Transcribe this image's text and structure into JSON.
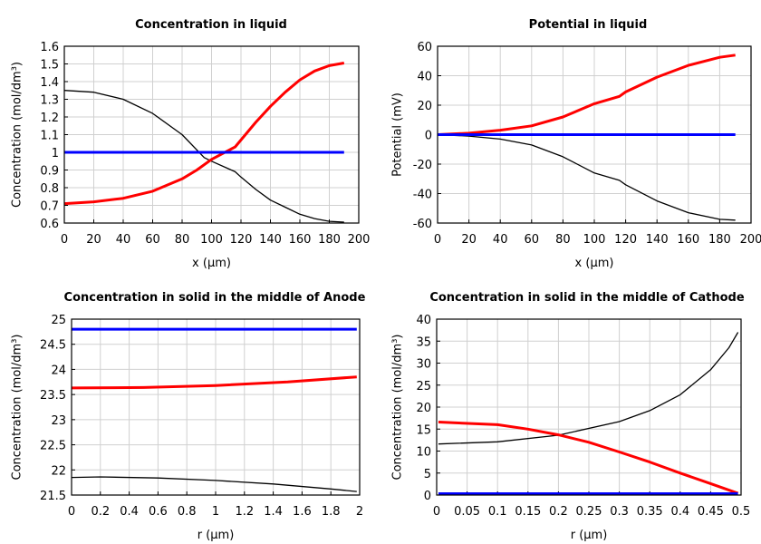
{
  "chart_data": [
    {
      "type": "line",
      "title": "Concentration in liquid",
      "xlabel": "x (µm)",
      "ylabel": "Concentration (mol/dm³)",
      "xlim": [
        0,
        200
      ],
      "ylim": [
        0.6,
        1.6
      ],
      "xticks": [
        "0",
        "20",
        "40",
        "60",
        "80",
        "100",
        "120",
        "140",
        "160",
        "180",
        "200"
      ],
      "yticks": [
        "0.6",
        "0.7",
        "0.8",
        "0.9",
        "1",
        "1.1",
        "1.2",
        "1.3",
        "1.4",
        "1.5",
        "1.6"
      ],
      "grid": true,
      "series": [
        {
          "color": "#000000",
          "x": [
            0,
            20,
            40,
            60,
            80,
            95,
            100,
            116,
            120,
            130,
            140,
            150,
            160,
            170,
            180,
            190
          ],
          "y": [
            1.35,
            1.34,
            1.3,
            1.22,
            1.1,
            0.97,
            0.95,
            0.89,
            0.86,
            0.79,
            0.73,
            0.69,
            0.65,
            0.625,
            0.61,
            0.605
          ]
        },
        {
          "color": "#ff0000",
          "x": [
            0,
            20,
            40,
            60,
            80,
            90,
            100,
            116,
            130,
            140,
            150,
            160,
            170,
            180,
            190
          ],
          "y": [
            0.71,
            0.72,
            0.74,
            0.78,
            0.85,
            0.9,
            0.96,
            1.03,
            1.17,
            1.26,
            1.34,
            1.41,
            1.46,
            1.49,
            1.505
          ]
        },
        {
          "color": "#0000ff",
          "x": [
            0,
            190
          ],
          "y": [
            1,
            1
          ]
        }
      ]
    },
    {
      "type": "line",
      "title": "Potential in liquid",
      "xlabel": "x (µm)",
      "ylabel": "Potential (mV)",
      "xlim": [
        0,
        200
      ],
      "ylim": [
        -60,
        60
      ],
      "xticks": [
        "0",
        "20",
        "40",
        "60",
        "80",
        "100",
        "120",
        "140",
        "160",
        "180",
        "200"
      ],
      "yticks": [
        "-60",
        "-40",
        "-20",
        "0",
        "20",
        "40",
        "60"
      ],
      "grid": true,
      "series": [
        {
          "color": "#000000",
          "x": [
            0,
            20,
            40,
            60,
            80,
            100,
            116,
            120,
            140,
            160,
            180,
            190
          ],
          "y": [
            0,
            -1,
            -3,
            -7,
            -15,
            -26,
            -31,
            -34,
            -45,
            -53,
            -57.5,
            -58
          ]
        },
        {
          "color": "#ff0000",
          "x": [
            0,
            20,
            40,
            60,
            80,
            100,
            116,
            120,
            140,
            160,
            180,
            190
          ],
          "y": [
            0,
            1,
            3,
            6,
            12,
            21,
            26,
            29,
            39,
            47,
            52.5,
            54
          ]
        },
        {
          "color": "#0000ff",
          "x": [
            0,
            190
          ],
          "y": [
            0,
            0
          ]
        }
      ]
    },
    {
      "type": "line",
      "title": "Concentration in solid in the middle of Anode",
      "xlabel": "r (µm)",
      "ylabel": "Concentration (mol/dm³)",
      "xlim": [
        0,
        2
      ],
      "ylim": [
        21.5,
        25
      ],
      "xticks": [
        "0",
        "0.2",
        "0.4",
        "0.6",
        "0.8",
        "1",
        "1.2",
        "1.4",
        "1.6",
        "1.8",
        "2"
      ],
      "yticks": [
        "21.5",
        "22",
        "22.5",
        "23",
        "23.5",
        "24",
        "24.5",
        "25"
      ],
      "grid": true,
      "series": [
        {
          "color": "#000000",
          "x": [
            0,
            0.2,
            0.6,
            1,
            1.4,
            1.8,
            1.98
          ],
          "y": [
            21.85,
            21.86,
            21.84,
            21.79,
            21.72,
            21.62,
            21.57
          ]
        },
        {
          "color": "#ff0000",
          "x": [
            0,
            0.5,
            1,
            1.5,
            1.98
          ],
          "y": [
            23.63,
            23.64,
            23.68,
            23.75,
            23.85
          ]
        },
        {
          "color": "#0000ff",
          "x": [
            0,
            1.98
          ],
          "y": [
            24.8,
            24.8
          ]
        }
      ]
    },
    {
      "type": "line",
      "title": "Concentration in solid in the middle of Cathode",
      "xlabel": "r (µm)",
      "ylabel": "Concentration (mol/dm³)",
      "xlim": [
        0,
        0.5
      ],
      "ylim": [
        0,
        40
      ],
      "xticks": [
        "0",
        "0.05",
        "0.1",
        "0.15",
        "0.2",
        "0.25",
        "0.3",
        "0.35",
        "0.4",
        "0.45",
        "0.5"
      ],
      "yticks": [
        "0",
        "5",
        "10",
        "15",
        "20",
        "25",
        "30",
        "35",
        "40"
      ],
      "grid": true,
      "series": [
        {
          "color": "#000000",
          "x": [
            0.003,
            0.1,
            0.2,
            0.3,
            0.35,
            0.4,
            0.45,
            0.48,
            0.495
          ],
          "y": [
            11.6,
            12.1,
            13.6,
            16.7,
            19.2,
            22.8,
            28.5,
            33.5,
            37
          ]
        },
        {
          "color": "#ff0000",
          "x": [
            0.003,
            0.1,
            0.15,
            0.2,
            0.25,
            0.3,
            0.35,
            0.4,
            0.45,
            0.495
          ],
          "y": [
            16.6,
            16,
            15,
            13.7,
            12,
            9.8,
            7.5,
            5,
            2.6,
            0.4
          ]
        },
        {
          "color": "#0000ff",
          "x": [
            0.003,
            0.495
          ],
          "y": [
            0.3,
            0.3
          ]
        }
      ]
    }
  ]
}
